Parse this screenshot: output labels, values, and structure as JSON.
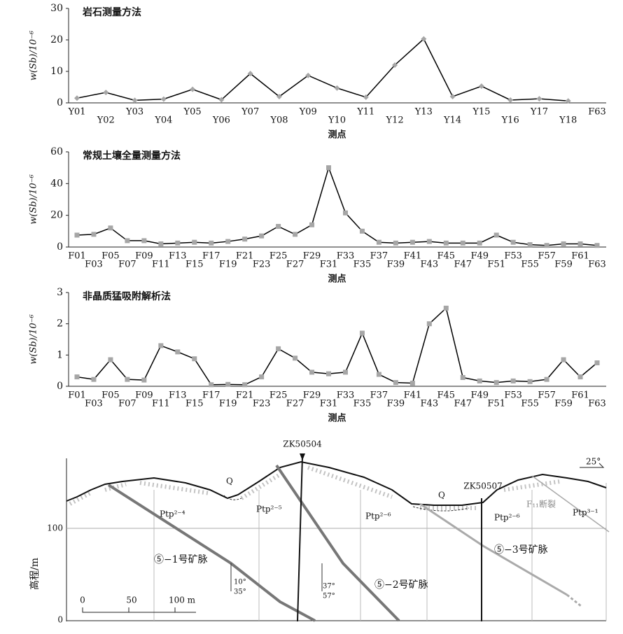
{
  "chart_data": [
    {
      "type": "line",
      "title": "岩石测量方法",
      "ylabel": "w(Sb)/10⁻⁶",
      "xlabel": "测点",
      "marker": "diamond",
      "categories": [
        "Y01",
        "Y02",
        "Y03",
        "Y04",
        "Y05",
        "Y06",
        "Y07",
        "Y08",
        "Y09",
        "Y10",
        "Y11",
        "Y12",
        "Y13",
        "Y14",
        "Y15",
        "Y16",
        "Y17",
        "Y18",
        "F63"
      ],
      "values": [
        1.5,
        3.3,
        0.8,
        1.2,
        4.3,
        1.0,
        9.3,
        2.0,
        8.7,
        4.7,
        1.8,
        12,
        20.3,
        2.0,
        5.3,
        0.9,
        1.3,
        0.6,
        null
      ],
      "color": "#000000",
      "marker_color": "#a6a6a6",
      "ylim": [
        0,
        30
      ],
      "yticks": [
        0,
        10,
        20,
        30
      ]
    },
    {
      "type": "line",
      "title": "常规土壤全量测量方法",
      "ylabel": "w(Sb)/10⁻⁶",
      "xlabel": "测点",
      "marker": "square",
      "categories": [
        "F01",
        "F03",
        "F05",
        "F07",
        "F09",
        "F11",
        "F13",
        "F15",
        "F17",
        "F19",
        "F21",
        "F23",
        "F25",
        "F27",
        "F29",
        "F31",
        "F33",
        "F35",
        "F37",
        "F39",
        "F41",
        "F43",
        "F45",
        "F47",
        "F49",
        "F51",
        "F53",
        "F55",
        "F57",
        "F59",
        "F61",
        "F63"
      ],
      "values": [
        7.5,
        8,
        12,
        4,
        4,
        2,
        2.5,
        3,
        2.5,
        3.5,
        5,
        7,
        13,
        8,
        14,
        50,
        21.5,
        10,
        3,
        2.5,
        3,
        3.5,
        2.5,
        2.5,
        2.5,
        7.5,
        3,
        1.5,
        1,
        2,
        2,
        1
      ],
      "color": "#000000",
      "marker_color": "#a6a6a6",
      "ylim": [
        0,
        60
      ],
      "yticks": [
        0,
        20,
        40,
        60
      ]
    },
    {
      "type": "line",
      "title": "非晶质猛吸附解析法",
      "ylabel": "w(Sb)/10⁻⁶",
      "xlabel": "测点",
      "marker": "square",
      "categories": [
        "F01",
        "F03",
        "F05",
        "F07",
        "F09",
        "F11",
        "F13",
        "F15",
        "F17",
        "F19",
        "F21",
        "F23",
        "F25",
        "F27",
        "F29",
        "F31",
        "F33",
        "F35",
        "F37",
        "F39",
        "F41",
        "F43",
        "F45",
        "F47",
        "F49",
        "F51",
        "F53",
        "F55",
        "F57",
        "F59",
        "F61",
        "F63"
      ],
      "values": [
        0.3,
        0.22,
        0.85,
        0.22,
        0.2,
        1.3,
        1.1,
        0.88,
        0.05,
        0.06,
        0.05,
        0.3,
        1.2,
        0.9,
        0.45,
        0.4,
        0.45,
        1.7,
        0.38,
        0.12,
        0.1,
        2.0,
        2.5,
        0.28,
        0.17,
        0.12,
        0.17,
        0.15,
        0.22,
        0.85,
        0.3,
        0.75
      ],
      "color": "#000000",
      "marker_color": "#a6a6a6",
      "ylim": [
        0,
        3
      ],
      "yticks": [
        0,
        1,
        2,
        3
      ]
    }
  ],
  "section": {
    "boreholes": [
      "ZK50504",
      "ZK50507"
    ],
    "q1": "Q",
    "q2": "Q",
    "units": [
      "Ptp²⁻⁴",
      "Ptp²⁻⁵",
      "Ptp²⁻⁶",
      "Ptp²⁻⁶",
      "Ptp³⁻¹"
    ],
    "fault": "F₁₁断裂",
    "veins": [
      "⑤−1号矿脉",
      "⑤−2号矿脉",
      "⑤−3号矿脉"
    ],
    "dip1": [
      "10°",
      "35°"
    ],
    "dip2": [
      "37°",
      "57°"
    ],
    "strike": "25°",
    "ylabel": "高程/m",
    "elev": [
      "100",
      "0"
    ],
    "scale": [
      "0",
      "50",
      "100 m"
    ]
  }
}
